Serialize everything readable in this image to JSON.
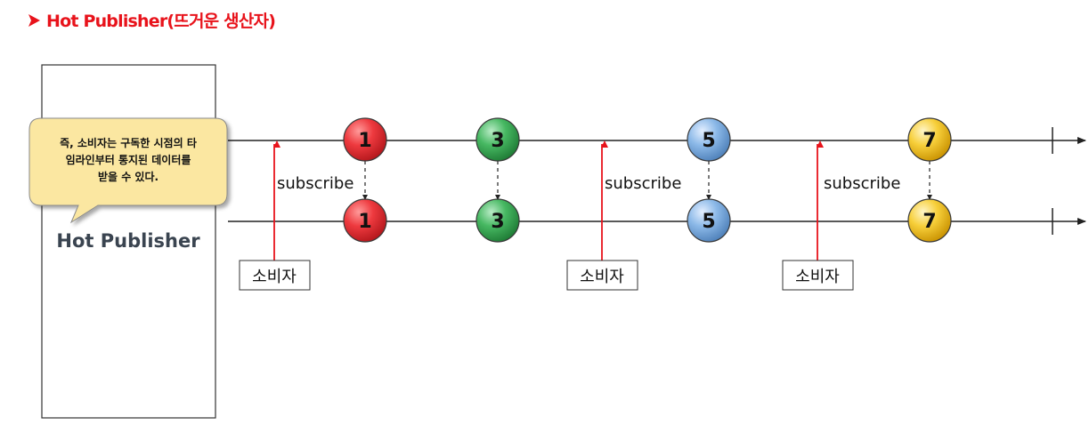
{
  "title": "Hot Publisher(뜨거운 생산자)",
  "publisher": {
    "label": "Hot Publisher"
  },
  "callout": {
    "lines": [
      "즉, 소비자는 구독한 시점의 타",
      "임라인부터 통지된 데이터를",
      "받을 수 있다."
    ]
  },
  "marbles": [
    {
      "label": "1",
      "color": "#e2262c"
    },
    {
      "label": "3",
      "color": "#2fa34a"
    },
    {
      "label": "5",
      "color": "#5b9bd5"
    },
    {
      "label": "7",
      "color": "#f4c01c"
    }
  ],
  "subscriptions": [
    {
      "label": "subscribe",
      "consumer": "소비자"
    },
    {
      "label": "subscribe",
      "consumer": "소비자"
    },
    {
      "label": "subscribe",
      "consumer": "소비자"
    }
  ],
  "colors": {
    "title": "#e8131b",
    "subscribe_arrow": "#e8131b",
    "timeline": "#222222",
    "callout_fill": "#fbe7a1"
  }
}
